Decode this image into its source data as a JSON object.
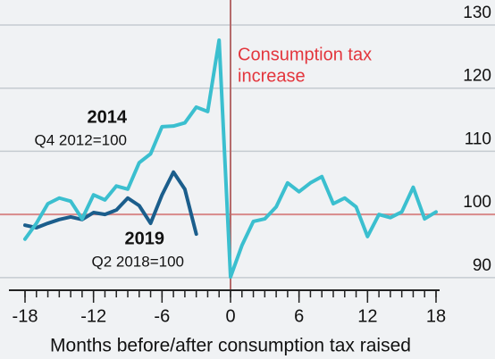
{
  "chart_data": {
    "type": "line",
    "x_axis_label": "Months before/after consumption tax raised",
    "annotation": [
      "Consumption tax",
      "increase"
    ],
    "event_x": 0,
    "reference_y": 100,
    "xlim": [
      -18,
      18
    ],
    "xticks": [
      -18,
      -12,
      -6,
      0,
      6,
      12,
      18
    ],
    "xticks_minor": [
      -18,
      -17,
      -16,
      -15,
      -14,
      -13,
      -12,
      -11,
      -10,
      -9,
      -8,
      -7,
      -6,
      -5,
      -4,
      -3,
      -2,
      -1,
      0,
      1,
      2,
      3,
      4,
      5,
      6,
      7,
      8,
      9,
      10,
      11,
      12,
      13,
      14,
      15,
      16,
      17,
      18
    ],
    "ylim": [
      88,
      130
    ],
    "yticks": [
      90,
      100,
      110,
      120,
      130
    ],
    "grid": true,
    "series": [
      {
        "name": "2014",
        "base": "Q4 2012=100",
        "color": "#3bbfcf",
        "x": [
          -18,
          -17,
          -16,
          -15,
          -14,
          -13,
          -12,
          -11,
          -10,
          -9,
          -8,
          -7,
          -6,
          -5,
          -4,
          -3,
          -2,
          -1,
          0,
          1,
          2,
          3,
          4,
          5,
          6,
          7,
          8,
          9,
          10,
          11,
          12,
          13,
          14,
          15,
          16,
          17,
          18
        ],
        "values": [
          96.1,
          98.6,
          101.7,
          102.6,
          102.1,
          99.3,
          103.1,
          102.3,
          104.5,
          104,
          108.2,
          109.6,
          113.9,
          114,
          114.5,
          117,
          116.3,
          127.6,
          90.1,
          95.1,
          98.9,
          99.3,
          101.2,
          105,
          103.6,
          105,
          106,
          101.7,
          102.6,
          101.2,
          96.5,
          100,
          99.5,
          100.4,
          104.3,
          99.3,
          100.4
        ]
      },
      {
        "name": "2019",
        "base": "Q2 2018=100",
        "color": "#1b5e8c",
        "x": [
          -18,
          -17,
          -16,
          -15,
          -14,
          -13,
          -12,
          -11,
          -10,
          -9,
          -8,
          -7,
          -6,
          -5,
          -4,
          -3
        ],
        "values": [
          98.3,
          97.9,
          98.6,
          99.2,
          99.6,
          99.2,
          100.3,
          100,
          100.7,
          102.6,
          101.4,
          98.6,
          103.1,
          106.7,
          104,
          96.9
        ]
      }
    ]
  }
}
